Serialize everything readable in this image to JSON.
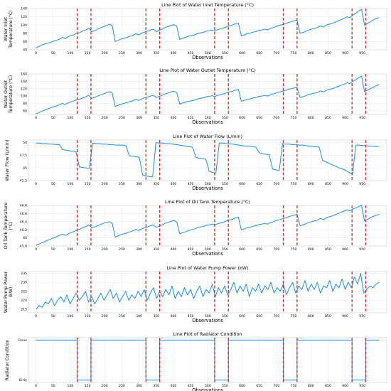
{
  "chart_data": [
    {
      "type": "line",
      "title": "Line Plot of Water Inlet Temperature (°C)",
      "xlabel": "Observations",
      "ylabel": "Water Inlet Temperature (°C)",
      "ylabel_lines": [
        "Water Inlet",
        "Temperature (°C)"
      ],
      "xlim": [
        -22,
        1021
      ],
      "ylim": [
        40,
        140
      ],
      "yticks": [
        40,
        60,
        80,
        100,
        120,
        140
      ],
      "grid": true,
      "series": [
        {
          "values": [
            45,
            48,
            52,
            54,
            56,
            58,
            61,
            63,
            66,
            70,
            67,
            72,
            74,
            77,
            80,
            82,
            86,
            88,
            92,
            84,
            86,
            90,
            93,
            96,
            99,
            102,
            98,
            60,
            63,
            66,
            68,
            70,
            73,
            75,
            79,
            76,
            80,
            83,
            85,
            88,
            90,
            84,
            87,
            90,
            94,
            96,
            99,
            101,
            97,
            65,
            68,
            70,
            73,
            74,
            76,
            79,
            81,
            82,
            85,
            86,
            88,
            86,
            89,
            91,
            93,
            96,
            98,
            100,
            103,
            105,
            74,
            76,
            79,
            80,
            83,
            84,
            87,
            88,
            90,
            88,
            92,
            94,
            97,
            99,
            101,
            103,
            106,
            108,
            110,
            112,
            80,
            82,
            85,
            88,
            90,
            92,
            94,
            98,
            95,
            100,
            102,
            104,
            107,
            110,
            113,
            116,
            120,
            118,
            124,
            128,
            134,
            138,
            100,
            104,
            108,
            112,
            116,
            118
          ]
        }
      ],
      "x_max": 999
    },
    {
      "type": "line",
      "title": "Line Plot of Water Outlet Temperature (°C)",
      "xlabel": "Observations",
      "ylabel": "Water Outlet Temperature (°C)",
      "ylabel_lines": [
        "Water Outlet",
        "Temperature (°C)"
      ],
      "xlim": [
        -22,
        1021
      ],
      "ylim": [
        50,
        160
      ],
      "yticks": [
        60,
        80,
        100,
        120,
        140,
        160
      ],
      "grid": true,
      "series": [
        {
          "values": [
            52,
            55,
            59,
            62,
            65,
            68,
            71,
            73,
            76,
            80,
            77,
            82,
            84,
            87,
            90,
            92,
            95,
            98,
            102,
            94,
            96,
            100,
            103,
            106,
            109,
            112,
            108,
            72,
            75,
            78,
            80,
            82,
            85,
            87,
            91,
            88,
            92,
            95,
            97,
            100,
            102,
            96,
            99,
            102,
            106,
            108,
            111,
            113,
            109,
            78,
            81,
            83,
            86,
            87,
            89,
            92,
            94,
            95,
            98,
            99,
            101,
            99,
            102,
            104,
            106,
            109,
            111,
            113,
            116,
            118,
            86,
            88,
            91,
            92,
            95,
            96,
            99,
            100,
            102,
            100,
            104,
            106,
            109,
            111,
            113,
            115,
            118,
            120,
            122,
            124,
            96,
            98,
            101,
            104,
            106,
            108,
            110,
            114,
            111,
            116,
            118,
            120,
            123,
            126,
            129,
            132,
            136,
            134,
            140,
            144,
            150,
            154,
            112,
            116,
            120,
            124,
            128,
            131
          ]
        }
      ],
      "x_max": 999
    },
    {
      "type": "line",
      "title": "Line Plot of Water Flow (L/min)",
      "xlabel": "Observations",
      "ylabel": "Water Flow (L/min)",
      "ylabel_lines": [
        "Water Flow (L/min)"
      ],
      "xlim": [
        -22,
        1021
      ],
      "ylim": [
        42.5,
        50.5
      ],
      "yticks": [
        42.5,
        45,
        47.5,
        50
      ],
      "grid": true,
      "series": [
        {
          "values": [
            49.9,
            49.9,
            49.8,
            49.8,
            49.7,
            49.7,
            49.6,
            49.6,
            48.6,
            48.5,
            48.4,
            48.3,
            48.2,
            45.2,
            45.1,
            45.0,
            44.9,
            49.9,
            49.8,
            49.8,
            49.7,
            49.7,
            49.6,
            49.6,
            49.5,
            49.5,
            49.5,
            49.4,
            47.4,
            47.3,
            47.2,
            47.1,
            43.6,
            43.4,
            43.3,
            43.2,
            50.0,
            49.9,
            49.9,
            49.8,
            49.8,
            49.7,
            49.6,
            49.5,
            49.4,
            49.3,
            49.2,
            49.1,
            47.1,
            46.9,
            46.8,
            46.7,
            44.3,
            44.1,
            44.0,
            49.9,
            49.9,
            49.8,
            49.8,
            49.7,
            49.6,
            49.5,
            49.4,
            49.3,
            49.3,
            49.2,
            49.1,
            48.0,
            47.8,
            47.7,
            47.6,
            44.8,
            44.6,
            44.5,
            49.8,
            49.7,
            49.7,
            49.6,
            49.6,
            49.5,
            49.5,
            49.4,
            49.3,
            49.2,
            49.2,
            49.1,
            46.5,
            46.2,
            45.9,
            45.6,
            45.3,
            45.0,
            44.8,
            44.5,
            44.1,
            43.8,
            49.5,
            49.5,
            49.4,
            49.4,
            49.3,
            49.3,
            49.2,
            49.2
          ]
        }
      ],
      "x_max": 999
    },
    {
      "type": "line",
      "title": "Line Plot of Oil Tank Temperature (°C)",
      "xlabel": "Observations",
      "ylabel": "Oil Tank Temperature (°C)",
      "ylabel_lines": [
        "Oil Tank Temperature",
        "(°C)"
      ],
      "xlim": [
        -22,
        1021
      ],
      "ylim": [
        45.8,
        46.8
      ],
      "yticks": [
        45.8,
        46.0,
        46.2,
        46.4,
        46.6,
        46.8
      ],
      "grid": true,
      "series": [
        {
          "values": [
            45.82,
            45.85,
            45.88,
            45.91,
            45.94,
            45.97,
            46.0,
            46.03,
            46.06,
            46.09,
            46.06,
            46.1,
            46.13,
            46.16,
            46.19,
            46.22,
            46.25,
            46.28,
            46.32,
            46.25,
            46.27,
            46.3,
            46.33,
            46.36,
            46.38,
            46.4,
            46.36,
            46.02,
            46.05,
            46.08,
            46.1,
            46.12,
            46.15,
            46.17,
            46.21,
            46.18,
            46.22,
            46.25,
            46.27,
            46.3,
            46.32,
            46.26,
            46.29,
            46.32,
            46.36,
            46.38,
            46.41,
            46.43,
            46.39,
            46.1,
            46.13,
            46.15,
            46.18,
            46.2,
            46.22,
            46.25,
            46.27,
            46.28,
            46.31,
            46.32,
            46.34,
            46.32,
            46.35,
            46.37,
            46.39,
            46.42,
            46.44,
            46.46,
            46.49,
            46.51,
            46.2,
            46.22,
            46.25,
            46.26,
            46.29,
            46.3,
            46.33,
            46.34,
            46.36,
            46.34,
            46.38,
            46.4,
            46.43,
            46.45,
            46.47,
            46.49,
            46.52,
            46.54,
            46.56,
            46.58,
            46.3,
            46.32,
            46.35,
            46.38,
            46.4,
            46.42,
            46.44,
            46.48,
            46.45,
            46.5,
            46.52,
            46.54,
            46.57,
            46.6,
            46.63,
            46.66,
            46.69,
            46.67,
            46.71,
            46.74,
            46.77,
            46.8,
            46.42,
            46.46,
            46.5,
            46.53,
            46.56,
            46.58
          ]
        }
      ],
      "x_max": 999
    },
    {
      "type": "line",
      "title": "Line Plot of Water Pump Power (kW)",
      "xlabel": "Observations",
      "ylabel": "Water Pump Power (kW)",
      "ylabel_lines": [
        "Water Pump Power",
        "(kW)"
      ],
      "xlim": [
        -22,
        1021
      ],
      "ylim": [
        213,
        236
      ],
      "yticks": [
        215,
        220,
        225,
        230,
        235
      ],
      "grid": true,
      "series": [
        {
          "values": [
            215,
            217,
            216,
            219,
            218,
            221,
            217,
            220,
            222,
            219,
            223,
            218,
            221,
            224,
            220,
            222,
            225,
            219,
            222,
            218,
            221,
            224,
            220,
            223,
            226,
            221,
            224,
            219,
            222,
            225,
            220,
            223,
            221,
            225,
            222,
            226,
            220,
            224,
            227,
            221,
            225,
            222,
            226,
            223,
            228,
            221,
            225,
            222,
            227,
            223,
            226,
            221,
            225,
            228,
            222,
            226,
            224,
            229,
            222,
            227,
            224,
            228,
            223,
            226,
            230,
            224,
            228,
            225,
            229,
            222,
            227,
            225,
            229,
            224,
            228,
            226,
            230,
            224,
            227,
            225,
            229,
            223,
            227,
            230,
            224,
            228,
            226,
            231,
            225,
            229,
            226,
            230,
            224,
            228,
            227,
            231,
            225,
            229,
            227,
            232,
            226,
            230,
            227,
            233,
            229,
            235,
            224,
            226,
            228,
            227,
            229,
            230
          ]
        }
      ],
      "x_max": 999
    },
    {
      "type": "line",
      "title": "Line Plot of Radiator Condition",
      "xlabel": "Observations",
      "ylabel": "Radiator Condition",
      "ylabel_lines": [
        "Radiator Condition"
      ],
      "xlim": [
        -22,
        1021
      ],
      "ylim": [
        -0.06,
        1.06
      ],
      "ytick_labels": [
        "Dirty",
        "Clean"
      ],
      "grid": true,
      "step_points": [
        [
          0,
          1
        ],
        [
          120,
          1
        ],
        [
          120,
          0
        ],
        [
          160,
          0
        ],
        [
          160,
          1
        ],
        [
          320,
          1
        ],
        [
          320,
          0
        ],
        [
          360,
          0
        ],
        [
          360,
          1
        ],
        [
          520,
          1
        ],
        [
          520,
          0
        ],
        [
          560,
          0
        ],
        [
          560,
          1
        ],
        [
          720,
          1
        ],
        [
          720,
          0
        ],
        [
          760,
          0
        ],
        [
          760,
          1
        ],
        [
          920,
          1
        ],
        [
          920,
          0
        ],
        [
          960,
          0
        ],
        [
          960,
          1
        ],
        [
          999,
          1
        ]
      ],
      "x_max": 999
    }
  ],
  "annotations": {
    "vertical_lines_at": [
      120,
      160,
      320,
      360,
      520,
      560,
      720,
      760,
      920,
      960
    ],
    "line_color": "#d62728",
    "series_color": "#1f8be0"
  }
}
